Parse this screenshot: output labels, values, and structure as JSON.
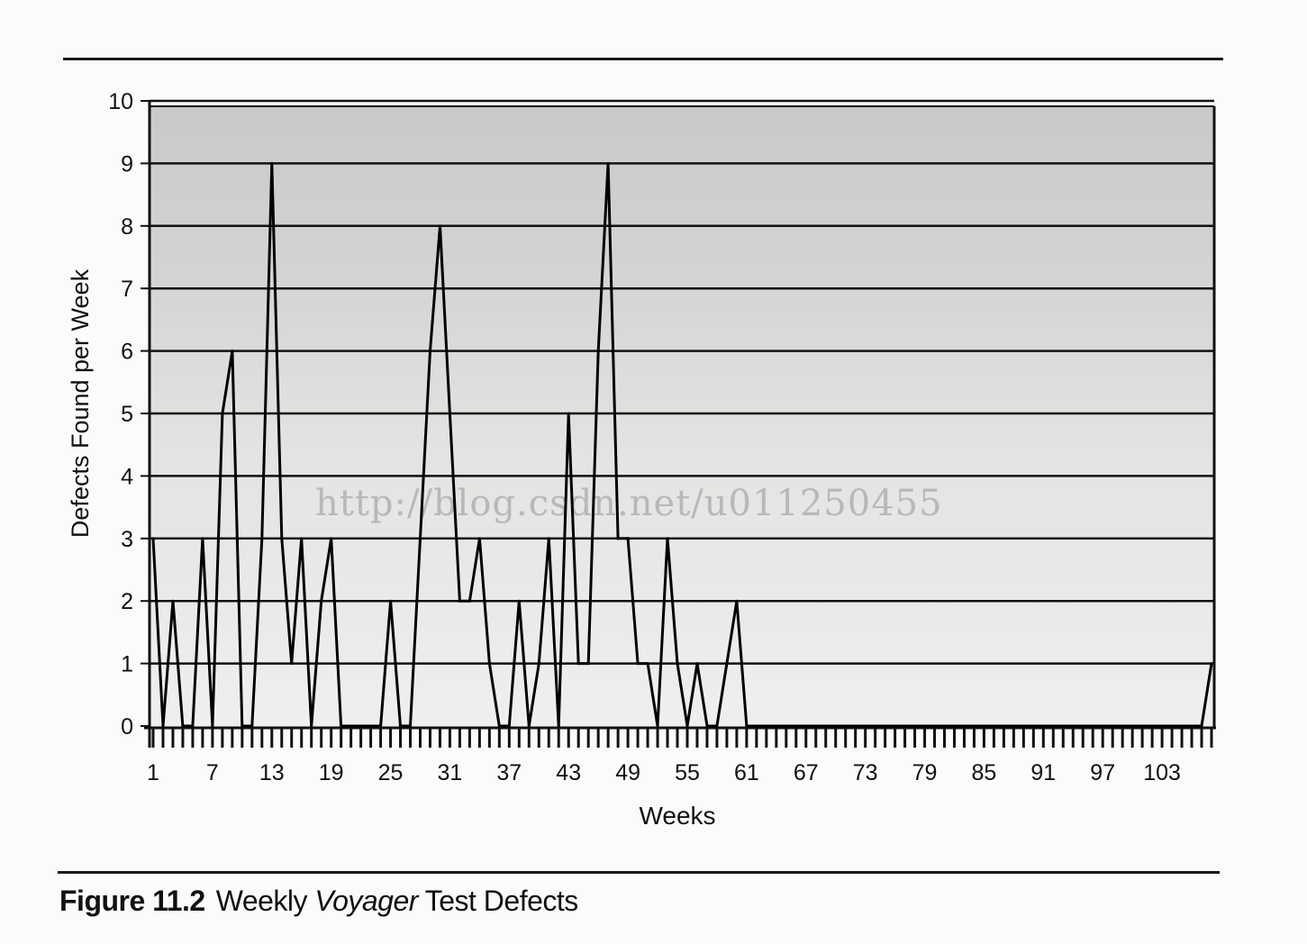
{
  "caption": {
    "label": "Figure 11.2",
    "text_before": "Weekly ",
    "text_emphasis": "Voyager",
    "text_after": " Test Defects"
  },
  "watermark": "http://blog.csdn.net/u011250455",
  "chart_data": {
    "type": "line",
    "xlabel": "Weeks",
    "ylabel": "Defects Found per Week",
    "xlim": [
      1,
      108
    ],
    "ylim": [
      0,
      10
    ],
    "x_tick_labels": [
      1,
      7,
      13,
      19,
      25,
      31,
      37,
      43,
      49,
      55,
      61,
      67,
      73,
      79,
      85,
      91,
      97,
      103
    ],
    "y_tick_labels": [
      0,
      1,
      2,
      3,
      4,
      5,
      6,
      7,
      8,
      9,
      10
    ],
    "grid": "horizontal",
    "series": [
      {
        "x": [
          1,
          2,
          3,
          4,
          5,
          6,
          7,
          8,
          9,
          10,
          11,
          12,
          13,
          14,
          15,
          16,
          17,
          18,
          19,
          20,
          21,
          22,
          23,
          24,
          25,
          26,
          27,
          28,
          29,
          30,
          31,
          32,
          33,
          34,
          35,
          36,
          37,
          38,
          39,
          40,
          41,
          42,
          43,
          44,
          45,
          46,
          47,
          48,
          49,
          50,
          51,
          52,
          53,
          54,
          55,
          56,
          57,
          58,
          59,
          60,
          61,
          62,
          63,
          64,
          65,
          66,
          67,
          68,
          69,
          70,
          71,
          72,
          73,
          74,
          75,
          76,
          77,
          78,
          79,
          80,
          81,
          82,
          83,
          84,
          85,
          86,
          87,
          88,
          89,
          90,
          91,
          92,
          93,
          94,
          95,
          96,
          97,
          98,
          99,
          100,
          101,
          102,
          103,
          104,
          105,
          106,
          107,
          108
        ],
        "values": [
          3,
          0,
          2,
          0,
          0,
          3,
          0,
          5,
          6,
          0,
          0,
          3,
          9,
          3,
          1,
          3,
          0,
          2,
          3,
          0,
          0,
          0,
          0,
          0,
          2,
          0,
          0,
          3,
          6,
          8,
          5,
          2,
          2,
          3,
          1,
          0,
          0,
          2,
          0,
          1,
          3,
          0,
          5,
          1,
          1,
          6,
          9,
          3,
          3,
          1,
          1,
          0,
          3,
          1,
          0,
          1,
          0,
          0,
          1,
          2,
          0,
          0,
          0,
          0,
          0,
          0,
          0,
          0,
          0,
          0,
          0,
          0,
          0,
          0,
          0,
          0,
          0,
          0,
          0,
          0,
          0,
          0,
          0,
          0,
          0,
          0,
          0,
          0,
          0,
          0,
          0,
          0,
          0,
          0,
          0,
          0,
          0,
          0,
          0,
          0,
          0,
          0,
          0,
          0,
          0,
          0,
          0,
          1
        ]
      }
    ]
  }
}
